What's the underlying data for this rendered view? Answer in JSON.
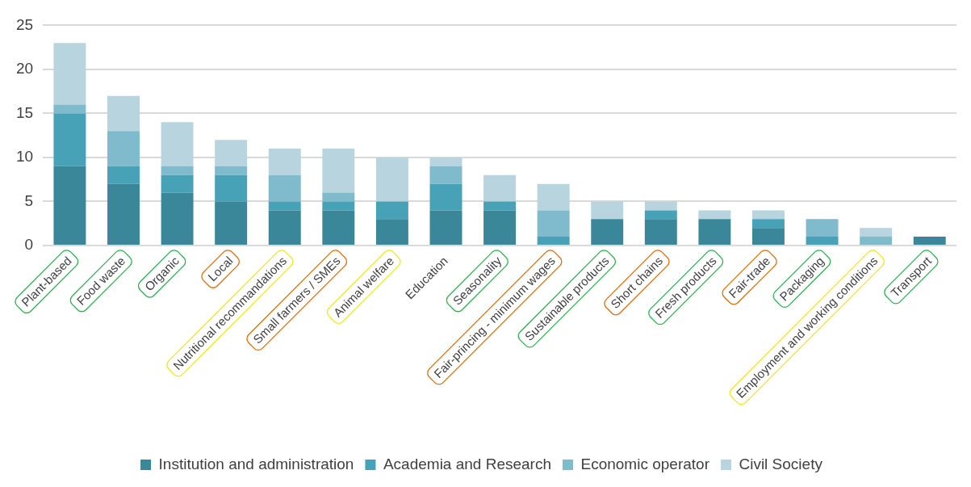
{
  "chart_data": {
    "type": "bar",
    "stacked": true,
    "categories": [
      "Plant-based",
      "Food waste",
      "Organic",
      "Local",
      "Nutritional recommandations",
      "Small farmers / SMEs",
      "Animal welfare",
      "Education",
      "Seasonality",
      "Fair-princing - minimum wages",
      "Sustainable products",
      "Short chains",
      "Fresh products",
      "Fair-trade",
      "Packaging",
      "Employment and working conditions",
      "Transport"
    ],
    "series": [
      {
        "name": "Institution and administration",
        "color": "#3a8799",
        "values": [
          9,
          7,
          6,
          5,
          4,
          4,
          3,
          4,
          4,
          0,
          3,
          3,
          3,
          2,
          0,
          0,
          1
        ]
      },
      {
        "name": "Academia and Research",
        "color": "#47a2b8",
        "values": [
          6,
          2,
          2,
          3,
          1,
          1,
          2,
          3,
          1,
          1,
          0,
          1,
          0,
          1,
          1,
          0,
          0
        ]
      },
      {
        "name": "Economic operator",
        "color": "#7fbacd",
        "values": [
          1,
          4,
          1,
          1,
          3,
          1,
          0,
          2,
          0,
          3,
          0,
          0,
          0,
          0,
          2,
          1,
          0
        ]
      },
      {
        "name": "Civil Society",
        "color": "#b7d4df",
        "values": [
          7,
          4,
          5,
          3,
          3,
          5,
          5,
          1,
          3,
          3,
          2,
          1,
          1,
          1,
          0,
          1,
          0
        ]
      }
    ],
    "ylim": [
      0,
      25
    ],
    "yticks": [
      0,
      5,
      10,
      15,
      20,
      25
    ],
    "grid": "y",
    "legend": "bottom"
  }
}
